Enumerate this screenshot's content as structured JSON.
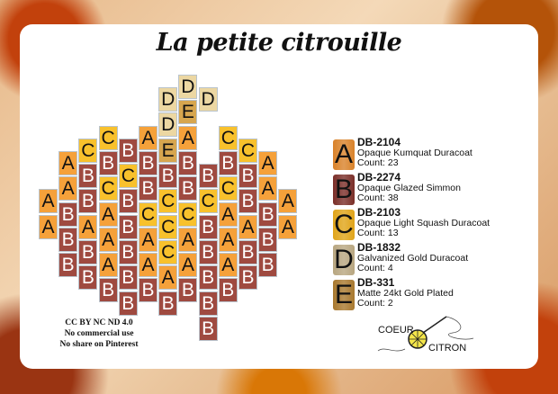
{
  "title": "La petite citrouille",
  "colors": {
    "A": "#f5a13a",
    "B": "#9f4a40",
    "C": "#f8c12c",
    "D": "#ecd7a2",
    "E": "#d7a64f"
  },
  "pattern": {
    "columns": [
      [
        "A",
        "A"
      ],
      [
        "A",
        "A",
        "B",
        "B",
        "B"
      ],
      [
        "C",
        "B",
        "B",
        "A",
        "B",
        "B"
      ],
      [
        "C",
        "B",
        "C",
        "A",
        "A",
        "A",
        "B"
      ],
      [
        "B",
        "C",
        "B",
        "B",
        "B",
        "B",
        "B"
      ],
      [
        "A",
        "B",
        "B",
        "C",
        "A",
        "A",
        "B"
      ],
      [
        "D",
        "D",
        "E",
        "B",
        "C",
        "C",
        "C",
        "A",
        "B"
      ],
      [
        "D",
        "E",
        "A",
        "B",
        "B",
        "C",
        "A",
        "A",
        "B"
      ],
      [
        "D",
        "",
        "",
        "B",
        "C",
        "B",
        "B",
        "B",
        "B",
        "B"
      ],
      [
        "C",
        "B",
        "C",
        "A",
        "A",
        "A",
        "B"
      ],
      [
        "C",
        "B",
        "B",
        "A",
        "B",
        "B"
      ],
      [
        "A",
        "A",
        "B",
        "B",
        "B"
      ],
      [
        "A",
        "A"
      ]
    ]
  },
  "legend": [
    {
      "letter": "A",
      "code": "DB-2104",
      "name": "Opaque Kumquat Duracoat",
      "count": "Count: 23",
      "swatch": "#d9822a"
    },
    {
      "letter": "B",
      "code": "DB-2274",
      "name": "Opaque Glazed Simmon",
      "count": "Count: 38",
      "swatch": "#7a2e28"
    },
    {
      "letter": "C",
      "code": "DB-2103",
      "name": "Opaque Light Squash Duracoat",
      "count": "Count: 13",
      "swatch": "#e0a418"
    },
    {
      "letter": "D",
      "code": "DB-1832",
      "name": "Galvanized Gold Duracoat",
      "count": "Count: 4",
      "swatch": "#b8a680"
    },
    {
      "letter": "E",
      "code": "DB-331",
      "name": "Matte 24kt Gold Plated",
      "count": "Count: 2",
      "swatch": "#a8782e"
    }
  ],
  "footer": {
    "line1": "CC BY NC ND 4.0",
    "line2": "No commercial use",
    "line3": "No share on Pinterest"
  },
  "logo": {
    "top": "COEUR",
    "bottom": "CITRON"
  }
}
